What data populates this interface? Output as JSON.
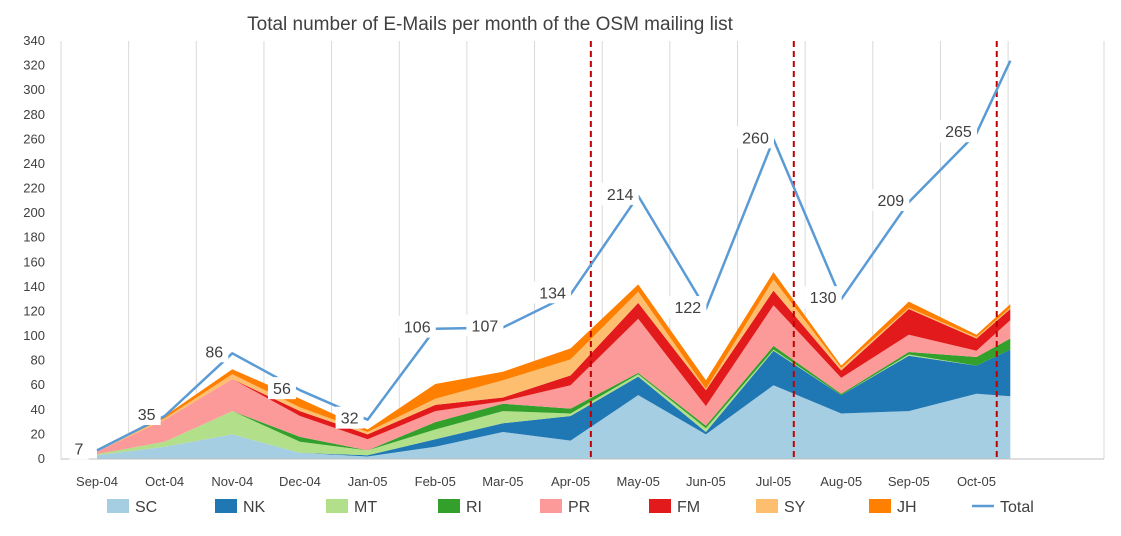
{
  "chart_data": {
    "type": "area",
    "title": "Total number of E-Mails  per month of the OSM mailing list",
    "xlabel": "",
    "ylabel": "",
    "ylim": [
      0,
      340
    ],
    "yticks": [
      0,
      20,
      40,
      60,
      80,
      100,
      120,
      140,
      160,
      180,
      200,
      220,
      240,
      260,
      280,
      300,
      320,
      340
    ],
    "grid": "vertical",
    "legend_position": "bottom",
    "categories": [
      "Sep-04",
      "Oct-04",
      "Nov-04",
      "Dec-04",
      "Jan-05",
      "Feb-05",
      "Mar-05",
      "Apr-05",
      "May-05",
      "Jun-05",
      "Jul-05",
      "Aug-05",
      "Sep-05",
      "Oct-05"
    ],
    "x_positions": [
      0,
      1,
      2,
      3,
      4,
      5,
      6,
      7,
      8,
      9,
      10,
      11,
      12,
      13,
      13.5
    ],
    "stacked_series": [
      {
        "name": "SC",
        "color": "#a6cee3",
        "values": [
          3,
          10,
          20,
          5,
          2,
          10,
          22,
          15,
          52,
          20,
          60,
          37,
          39,
          53,
          51
        ]
      },
      {
        "name": "NK",
        "color": "#1f78b4",
        "values": [
          0,
          0,
          0,
          0,
          1,
          6,
          7,
          20,
          15,
          2,
          28,
          15,
          45,
          23,
          38
        ]
      },
      {
        "name": "MT",
        "color": "#b2df8a",
        "values": [
          1,
          4,
          19,
          9,
          4,
          8,
          10,
          2,
          2,
          3,
          1,
          0,
          1,
          0,
          0
        ]
      },
      {
        "name": "RI",
        "color": "#33a02c",
        "values": [
          0,
          0,
          0,
          4,
          0,
          6,
          6,
          4,
          1,
          2,
          3,
          1,
          2,
          7,
          9
        ]
      },
      {
        "name": "PR",
        "color": "#fb9a99",
        "values": [
          2,
          18,
          26,
          17,
          9,
          9,
          2,
          19,
          44,
          16,
          33,
          13,
          14,
          5,
          15
        ]
      },
      {
        "name": "FM",
        "color": "#e31a1c",
        "values": [
          0,
          0,
          0,
          4,
          4,
          5,
          3,
          8,
          13,
          13,
          12,
          6,
          21,
          10,
          9
        ]
      },
      {
        "name": "SY",
        "color": "#fdbf6f",
        "values": [
          1,
          1,
          4,
          3,
          2,
          5,
          14,
          13,
          9,
          1,
          9,
          2,
          1,
          1,
          1
        ]
      },
      {
        "name": "JH",
        "color": "#ff7f00",
        "values": [
          0,
          2,
          4,
          7,
          2,
          12,
          7,
          9,
          6,
          7,
          6,
          2,
          5,
          2,
          3
        ]
      }
    ],
    "total_series": {
      "name": "Total",
      "color": "#5b9bd5",
      "values": [
        7,
        35,
        86,
        56,
        32,
        106,
        107,
        134,
        214,
        122,
        260,
        130,
        209,
        265,
        324
      ]
    },
    "data_labels": [
      {
        "index": 0,
        "text": "7"
      },
      {
        "index": 1,
        "text": "35"
      },
      {
        "index": 2,
        "text": "86"
      },
      {
        "index": 3,
        "text": "56"
      },
      {
        "index": 4,
        "text": "32"
      },
      {
        "index": 5,
        "text": "106"
      },
      {
        "index": 6,
        "text": "107"
      },
      {
        "index": 7,
        "text": "134"
      },
      {
        "index": 8,
        "text": "214"
      },
      {
        "index": 9,
        "text": "122"
      },
      {
        "index": 10,
        "text": "260"
      },
      {
        "index": 11,
        "text": "130"
      },
      {
        "index": 12,
        "text": "209"
      },
      {
        "index": 13,
        "text": "265"
      }
    ],
    "reference_lines": [
      {
        "x": 7.3,
        "color": "#c00000",
        "style": "dashed"
      },
      {
        "x": 10.3,
        "color": "#c00000",
        "style": "dashed"
      },
      {
        "x": 13.3,
        "color": "#c00000",
        "style": "dashed"
      }
    ],
    "legend": [
      "SC",
      "NK",
      "MT",
      "RI",
      "PR",
      "FM",
      "SY",
      "JH",
      "Total"
    ]
  }
}
